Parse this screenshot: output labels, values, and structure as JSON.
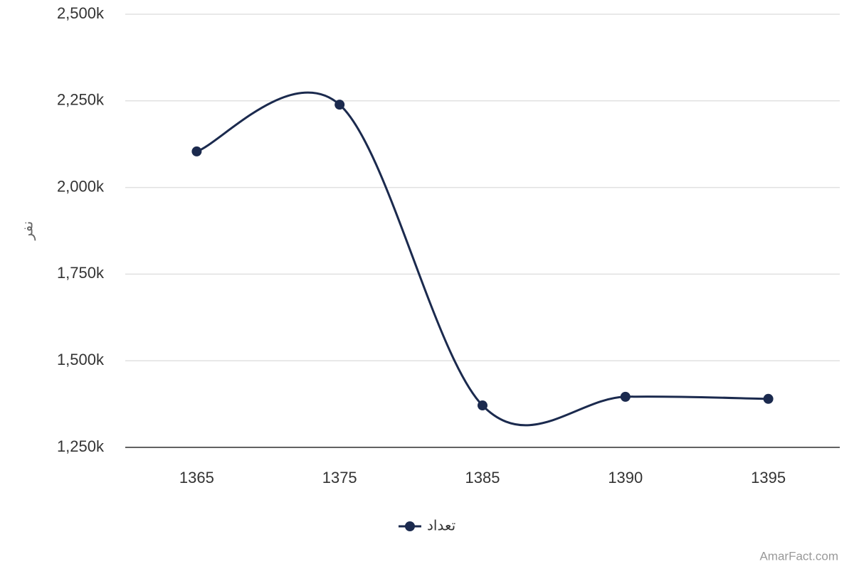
{
  "chart_data": {
    "type": "line",
    "y_label": "نفر",
    "categories": [
      "1365",
      "1375",
      "1385",
      "1390",
      "1395"
    ],
    "series": [
      {
        "name": "تعداد",
        "color": "#1b2a4e",
        "values": [
          2104000,
          2239000,
          1371000,
          1396000,
          1390000
        ]
      }
    ],
    "ylim": [
      1250000,
      2500000
    ],
    "yticks": [
      {
        "value": 1250000,
        "label": "1,250k"
      },
      {
        "value": 1500000,
        "label": "1,500k"
      },
      {
        "value": 1750000,
        "label": "1,750k"
      },
      {
        "value": 2000000,
        "label": "2,000k"
      },
      {
        "value": 2250000,
        "label": "2,250k"
      },
      {
        "value": 2500000,
        "label": "2,500k"
      }
    ],
    "grid": true,
    "legend": "bottom",
    "credit": "AmarFact.com"
  }
}
